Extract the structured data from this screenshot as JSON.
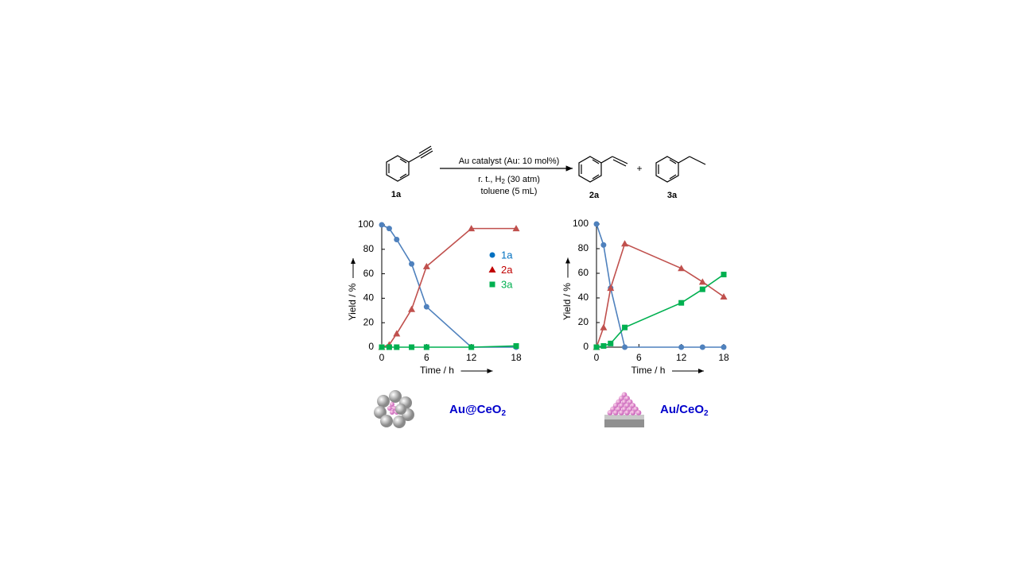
{
  "scheme": {
    "reagent": "Au catalyst (Au: 10 mol%)",
    "conditions_pre": "r. t.,  H",
    "conditions_sub": "2",
    "conditions_post": " (30 atm)",
    "solvent": "toluene (5 mL)",
    "substrate": "1a",
    "product_1": "2a",
    "plus": "+",
    "product_2": "3a"
  },
  "catalysts": [
    {
      "name": "Au@CeO",
      "sub": "2"
    },
    {
      "name": "Au/CeO",
      "sub": "2"
    }
  ],
  "chart_data": [
    {
      "type": "line",
      "x_label": "Time / h",
      "y_label": "Yield / %",
      "x": [
        0,
        1,
        2,
        4,
        6,
        12,
        18
      ],
      "xlim": [
        0,
        18
      ],
      "xticks": [
        0,
        6,
        12,
        18
      ],
      "ylim": [
        0,
        100
      ],
      "yticks": [
        0,
        20,
        40,
        60,
        80,
        100
      ],
      "legend": "upper right",
      "series": [
        {
          "name": "1a",
          "color": "#4f81bd",
          "label_color": "#0070c0",
          "marker": "circle",
          "values": [
            100,
            97,
            88,
            68,
            33,
            0,
            0
          ]
        },
        {
          "name": "2a",
          "color": "#c0504d",
          "label_color": "#c00000",
          "marker": "triangle",
          "values": [
            0,
            2,
            11,
            31,
            66,
            97,
            97
          ]
        },
        {
          "name": "3a",
          "color": "#00b050",
          "label_color": "#00b050",
          "marker": "square",
          "values": [
            0,
            0,
            0,
            0,
            0,
            0,
            1
          ]
        }
      ]
    },
    {
      "type": "line",
      "x_label": "Time / h",
      "y_label": "Yield / %",
      "x": [
        0,
        1,
        2,
        4,
        12,
        15,
        18
      ],
      "xlim": [
        0,
        18
      ],
      "xticks": [
        0,
        6,
        12,
        18
      ],
      "ylim": [
        0,
        100
      ],
      "yticks": [
        0,
        20,
        40,
        60,
        80,
        100
      ],
      "series": [
        {
          "name": "1a",
          "color": "#4f81bd",
          "marker": "circle",
          "values": [
            100,
            83,
            48,
            0,
            0,
            0,
            0
          ]
        },
        {
          "name": "2a",
          "color": "#c0504d",
          "marker": "triangle",
          "values": [
            0,
            16,
            48,
            84,
            64,
            53,
            41
          ]
        },
        {
          "name": "3a",
          "color": "#00b050",
          "marker": "square",
          "values": [
            0,
            1,
            3,
            16,
            36,
            47,
            59
          ]
        }
      ]
    }
  ]
}
